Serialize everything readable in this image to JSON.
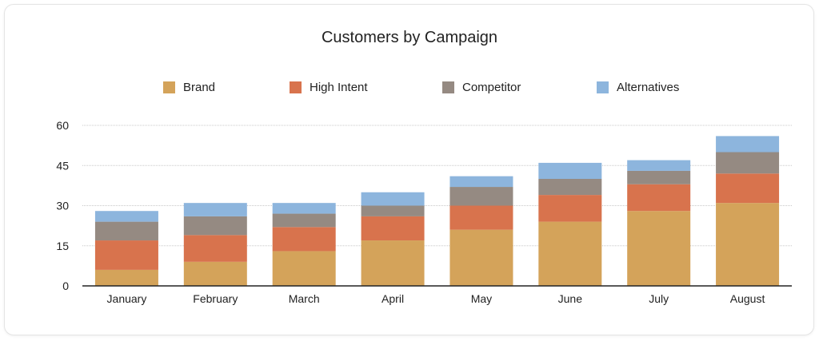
{
  "chart_data": {
    "type": "bar",
    "stacked": true,
    "title": "Customers by Campaign",
    "categories": [
      "January",
      "February",
      "March",
      "April",
      "May",
      "June",
      "July",
      "August"
    ],
    "series": [
      {
        "name": "Brand",
        "color": "#d4a35a",
        "values": [
          6,
          9,
          13,
          17,
          21,
          24,
          28,
          31
        ]
      },
      {
        "name": "High Intent",
        "color": "#d8734d",
        "values": [
          11,
          10,
          9,
          9,
          9,
          10,
          10,
          11
        ]
      },
      {
        "name": "Competitor",
        "color": "#958a82",
        "values": [
          7,
          7,
          5,
          4,
          7,
          6,
          5,
          8
        ]
      },
      {
        "name": "Alternatives",
        "color": "#8db5dd",
        "values": [
          4,
          5,
          4,
          5,
          4,
          6,
          4,
          6
        ]
      }
    ],
    "ylim": [
      0,
      60
    ],
    "yticks": [
      "0",
      "15",
      "30",
      "45",
      "60"
    ],
    "grid": true,
    "legend_position": "top"
  }
}
